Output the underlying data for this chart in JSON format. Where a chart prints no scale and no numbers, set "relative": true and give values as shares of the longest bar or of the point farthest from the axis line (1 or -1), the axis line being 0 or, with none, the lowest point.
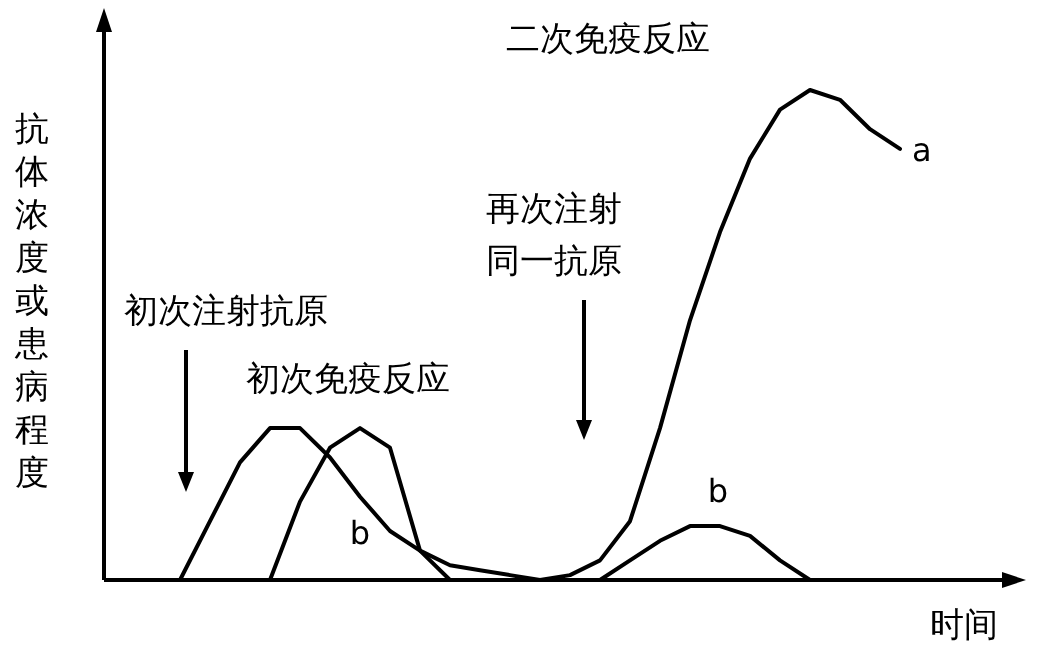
{
  "chart_data": {
    "type": "line",
    "relative": true,
    "ylabel": "抗体浓度或患病程度",
    "xlabel": "时间",
    "marker": "none",
    "line_style": "solid",
    "legend": false,
    "categories": [
      null,
      null,
      null,
      null,
      null,
      null,
      null,
      null,
      null,
      null,
      null,
      null,
      null,
      null,
      null,
      null,
      null,
      null,
      null,
      null,
      null,
      null,
      null,
      null,
      null,
      null,
      null,
      null,
      null,
      null
    ],
    "series": [
      {
        "name": "a",
        "color": "#000000",
        "values": [
          null,
          null,
          0,
          0.12,
          0.24,
          0.31,
          0.31,
          0.25,
          0.17,
          0.1,
          0.06,
          0.03,
          0.02,
          0.01,
          0,
          0.01,
          0.04,
          0.12,
          0.31,
          0.53,
          0.71,
          0.86,
          0.96,
          1,
          0.98,
          0.92,
          0.88,
          null,
          null,
          null
        ]
      },
      {
        "name": "b",
        "color": "#000000",
        "values": [
          null,
          null,
          null,
          null,
          null,
          0,
          0.16,
          0.27,
          0.31,
          0.27,
          0.06,
          0,
          0,
          0,
          0,
          0,
          0,
          0.04,
          0.08,
          0.11,
          0.11,
          0.09,
          0.04,
          0,
          null,
          null,
          null,
          null,
          null,
          null
        ]
      }
    ],
    "annotations": [
      "初次注射抗原",
      "初次免疫反应",
      "再次注射同一抗原",
      "二次免疫反应"
    ]
  }
}
